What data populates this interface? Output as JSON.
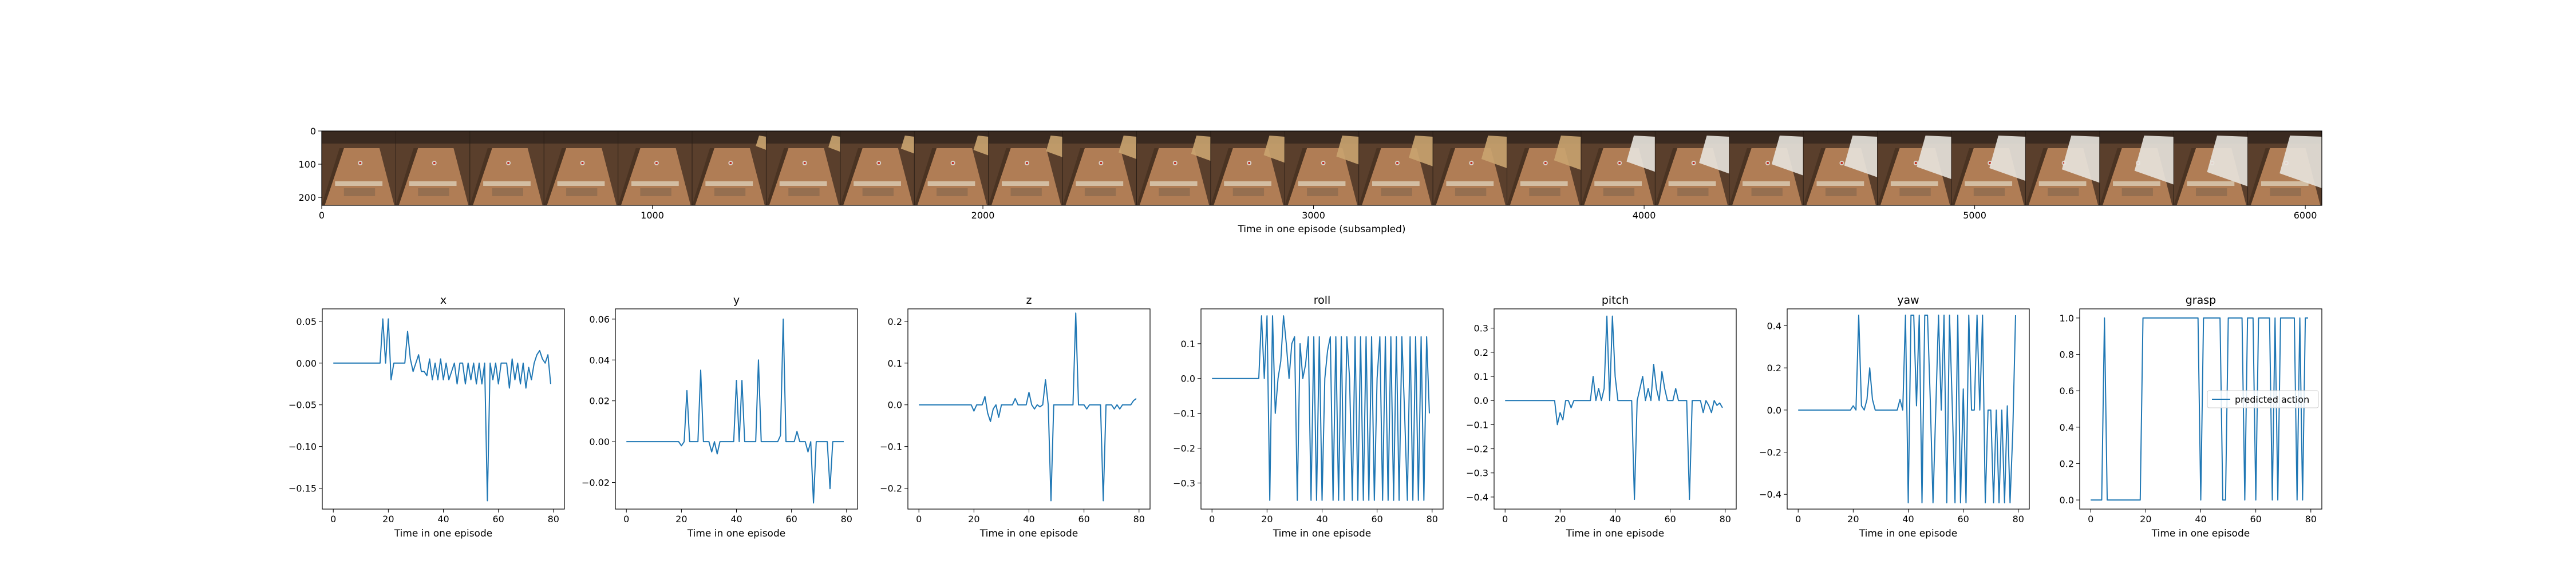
{
  "colors": {
    "line": "#1f77b4",
    "axes": "#000000",
    "background": "#ffffff"
  },
  "strip": {
    "xlabel": "Time in one episode (subsampled)",
    "xticks": [
      0,
      1000,
      2000,
      3000,
      4000,
      5000,
      6000
    ],
    "yticks": [
      0,
      100,
      200
    ],
    "xlim": [
      0,
      6050
    ],
    "ylim": [
      224,
      0
    ],
    "frame_count": 27,
    "frame_description": "robot camera frames of a wooden table; a white robot arm enters from the right in later frames"
  },
  "chart_data": [
    {
      "type": "line",
      "title": "x",
      "xlabel": "Time in one episode",
      "ylabel": "",
      "xlim": [
        -4,
        84
      ],
      "ylim": [
        -0.175,
        0.065
      ],
      "xticks": [
        0,
        20,
        40,
        60,
        80
      ],
      "yticks": [
        0.05,
        0.0,
        -0.05,
        -0.1,
        -0.15
      ],
      "ytick_labels": [
        "0.05",
        "0.00",
        "−0.05",
        "−0.10",
        "−0.15"
      ],
      "series": [
        {
          "name": "",
          "x_start": 0,
          "values": [
            0,
            0,
            0,
            0,
            0,
            0,
            0,
            0,
            0,
            0,
            0,
            0,
            0,
            0,
            0,
            0,
            0,
            0,
            0.053,
            0,
            0.053,
            -0.02,
            0,
            0,
            0,
            0,
            0,
            0.038,
            0.005,
            -0.01,
            0,
            0.01,
            -0.01,
            -0.01,
            -0.015,
            0.005,
            -0.02,
            0,
            -0.02,
            0.005,
            -0.02,
            0,
            -0.02,
            -0.01,
            0,
            -0.025,
            0,
            0,
            -0.025,
            0,
            -0.02,
            0,
            -0.025,
            0,
            -0.025,
            0,
            -0.165,
            0,
            -0.02,
            0,
            -0.025,
            0,
            0,
            0,
            -0.03,
            0.005,
            -0.02,
            0,
            -0.025,
            0,
            -0.03,
            -0.005,
            -0.02,
            0,
            0.01,
            0.015,
            0.005,
            0,
            0.01,
            -0.025
          ]
        }
      ]
    },
    {
      "type": "line",
      "title": "y",
      "xlabel": "Time in one episode",
      "ylabel": "",
      "xlim": [
        -4,
        84
      ],
      "ylim": [
        -0.033,
        0.065
      ],
      "xticks": [
        0,
        20,
        40,
        60,
        80
      ],
      "yticks": [
        0.06,
        0.04,
        0.02,
        0.0,
        -0.02
      ],
      "ytick_labels": [
        "0.06",
        "0.04",
        "0.02",
        "0.00",
        "−0.02"
      ],
      "series": [
        {
          "name": "",
          "x_start": 0,
          "values": [
            0,
            0,
            0,
            0,
            0,
            0,
            0,
            0,
            0,
            0,
            0,
            0,
            0,
            0,
            0,
            0,
            0,
            0,
            0,
            0,
            -0.002,
            0,
            0.025,
            0,
            0,
            0,
            0,
            0.035,
            0,
            0,
            0,
            -0.005,
            0,
            -0.006,
            0,
            0,
            0,
            0,
            0,
            0,
            0.03,
            0,
            0.03,
            0,
            0,
            0,
            0,
            0,
            0.04,
            0,
            0,
            0,
            0,
            0,
            0,
            0,
            0.003,
            0.06,
            0,
            0,
            0,
            0,
            0.005,
            0,
            0,
            0,
            -0.005,
            0,
            -0.03,
            0,
            0,
            0,
            0,
            0,
            -0.023,
            0,
            0,
            0,
            0,
            0
          ]
        }
      ]
    },
    {
      "type": "line",
      "title": "z",
      "xlabel": "Time in one episode",
      "ylabel": "",
      "xlim": [
        -4,
        84
      ],
      "ylim": [
        -0.25,
        0.23
      ],
      "xticks": [
        0,
        20,
        40,
        60,
        80
      ],
      "yticks": [
        0.2,
        0.1,
        0.0,
        -0.1,
        -0.2
      ],
      "ytick_labels": [
        "0.2",
        "0.1",
        "0.0",
        "−0.1",
        "−0.2"
      ],
      "series": [
        {
          "name": "",
          "x_start": 0,
          "values": [
            0,
            0,
            0,
            0,
            0,
            0,
            0,
            0,
            0,
            0,
            0,
            0,
            0,
            0,
            0,
            0,
            0,
            0,
            0,
            0,
            -0.015,
            0,
            0,
            0,
            0.02,
            -0.02,
            -0.04,
            -0.01,
            0,
            -0.03,
            0,
            0,
            0,
            0,
            0,
            0.015,
            0,
            0,
            0,
            0,
            0.03,
            0,
            -0.01,
            0,
            -0.005,
            0,
            0.06,
            0,
            -0.23,
            0,
            0,
            0,
            0,
            0,
            0,
            0,
            0,
            0.22,
            0,
            0,
            0,
            -0.01,
            0,
            0,
            0,
            0,
            0,
            -0.23,
            0,
            0,
            0,
            -0.01,
            0,
            -0.01,
            0,
            0,
            0,
            0,
            0.01,
            0.015
          ]
        }
      ]
    },
    {
      "type": "line",
      "title": "roll",
      "xlabel": "Time in one episode",
      "ylabel": "",
      "xlim": [
        -4,
        84
      ],
      "ylim": [
        -0.375,
        0.2
      ],
      "xticks": [
        0,
        20,
        40,
        60,
        80
      ],
      "yticks": [
        0.1,
        0.0,
        -0.1,
        -0.2,
        -0.3
      ],
      "ytick_labels": [
        "0.1",
        "0.0",
        "−0.1",
        "−0.2",
        "−0.3"
      ],
      "series": [
        {
          "name": "",
          "x_start": 0,
          "values": [
            0,
            0,
            0,
            0,
            0,
            0,
            0,
            0,
            0,
            0,
            0,
            0,
            0,
            0,
            0,
            0,
            0,
            0,
            0.18,
            0,
            0.18,
            -0.35,
            0.18,
            -0.1,
            0,
            0.05,
            0.18,
            0.1,
            0,
            0.1,
            0.12,
            -0.35,
            0.1,
            0,
            0.04,
            0.12,
            -0.35,
            0.12,
            -0.35,
            0.12,
            -0.35,
            0,
            0.08,
            0.12,
            -0.35,
            0.12,
            -0.35,
            0.12,
            -0.35,
            0.12,
            0,
            -0.35,
            0.12,
            -0.35,
            0.12,
            -0.35,
            0.12,
            -0.35,
            0.12,
            -0.35,
            0,
            0.12,
            -0.35,
            0.12,
            -0.35,
            0.12,
            -0.35,
            0.12,
            -0.35,
            0.12,
            -0.1,
            -0.35,
            0.12,
            -0.35,
            0.12,
            -0.35,
            0.12,
            -0.35,
            0.12,
            -0.1
          ]
        }
      ]
    },
    {
      "type": "line",
      "title": "pitch",
      "xlabel": "Time in one episode",
      "ylabel": "",
      "xlim": [
        -4,
        84
      ],
      "ylim": [
        -0.45,
        0.38
      ],
      "xticks": [
        0,
        20,
        40,
        60,
        80
      ],
      "yticks": [
        0.3,
        0.2,
        0.1,
        0.0,
        -0.1,
        -0.2,
        -0.3,
        -0.4
      ],
      "ytick_labels": [
        "0.3",
        "0.2",
        "0.1",
        "0.0",
        "−0.1",
        "−0.2",
        "−0.3",
        "−0.4"
      ],
      "series": [
        {
          "name": "",
          "x_start": 0,
          "values": [
            0,
            0,
            0,
            0,
            0,
            0,
            0,
            0,
            0,
            0,
            0,
            0,
            0,
            0,
            0,
            0,
            0,
            0,
            0,
            -0.1,
            -0.05,
            -0.08,
            0,
            0,
            -0.03,
            0,
            0,
            0,
            0,
            0,
            0,
            0,
            0.1,
            0,
            0.05,
            0,
            0.05,
            0.35,
            0,
            0.35,
            0.1,
            0,
            0,
            0,
            0,
            0,
            0,
            -0.41,
            0,
            0.05,
            0.1,
            0,
            0.05,
            0,
            0.15,
            0.05,
            0,
            0.12,
            0.05,
            0,
            0,
            0,
            0.05,
            0,
            0,
            0,
            0,
            -0.41,
            0,
            0,
            0,
            0,
            -0.05,
            0,
            -0.02,
            -0.05,
            0,
            -0.02,
            -0.01,
            -0.03
          ]
        }
      ]
    },
    {
      "type": "line",
      "title": "yaw",
      "xlabel": "Time in one episode",
      "ylabel": "",
      "xlim": [
        -4,
        84
      ],
      "ylim": [
        -0.47,
        0.48
      ],
      "xticks": [
        0,
        20,
        40,
        60,
        80
      ],
      "yticks": [
        0.4,
        0.2,
        0.0,
        -0.2,
        -0.4
      ],
      "ytick_labels": [
        "0.4",
        "0.2",
        "0.0",
        "−0.2",
        "−0.4"
      ],
      "series": [
        {
          "name": "",
          "x_start": 0,
          "values": [
            0,
            0,
            0,
            0,
            0,
            0,
            0,
            0,
            0,
            0,
            0,
            0,
            0,
            0,
            0,
            0,
            0,
            0,
            0,
            0,
            0.02,
            0,
            0.45,
            0.02,
            0,
            0.05,
            0.2,
            0.05,
            0,
            0,
            0,
            0,
            0,
            0,
            0,
            0,
            0,
            0.05,
            0,
            0.45,
            -0.44,
            0.45,
            0.45,
            0.02,
            0.45,
            -0.44,
            0.45,
            0.45,
            0.05,
            -0.44,
            0,
            0.45,
            0,
            0.45,
            -0.44,
            0.45,
            0.02,
            -0.44,
            0.45,
            -0.44,
            0.1,
            -0.44,
            0.45,
            0,
            0,
            0.45,
            0,
            0.45,
            -0.44,
            0,
            0,
            -0.44,
            0,
            -0.44,
            0,
            -0.44,
            0.02,
            -0.44,
            -0.1,
            0.45
          ]
        }
      ]
    },
    {
      "type": "line",
      "title": "grasp",
      "xlabel": "Time in one episode",
      "ylabel": "",
      "xlim": [
        -4,
        84
      ],
      "ylim": [
        -0.05,
        1.05
      ],
      "xticks": [
        0,
        20,
        40,
        60,
        80
      ],
      "yticks": [
        1.0,
        0.8,
        0.6,
        0.4,
        0.2,
        0.0
      ],
      "ytick_labels": [
        "1.0",
        "0.8",
        "0.6",
        "0.4",
        "0.2",
        "0.0"
      ],
      "legend": {
        "entries": [
          "predicted action"
        ],
        "position": "center-right"
      },
      "series": [
        {
          "name": "predicted action",
          "x_start": 0,
          "values": [
            0,
            0,
            0,
            0,
            0,
            1,
            0,
            0,
            0,
            0,
            0,
            0,
            0,
            0,
            0,
            0,
            0,
            0,
            0,
            1,
            1,
            1,
            1,
            1,
            1,
            1,
            1,
            1,
            1,
            1,
            1,
            1,
            1,
            1,
            1,
            1,
            1,
            1,
            1,
            1,
            0,
            1,
            1,
            1,
            1,
            1,
            1,
            1,
            0,
            0,
            1,
            1,
            1,
            1,
            1,
            1,
            0,
            1,
            1,
            1,
            0,
            1,
            1,
            1,
            1,
            1,
            0,
            1,
            0,
            1,
            1,
            1,
            1,
            1,
            1,
            0,
            1,
            0,
            1,
            1
          ]
        }
      ]
    }
  ]
}
